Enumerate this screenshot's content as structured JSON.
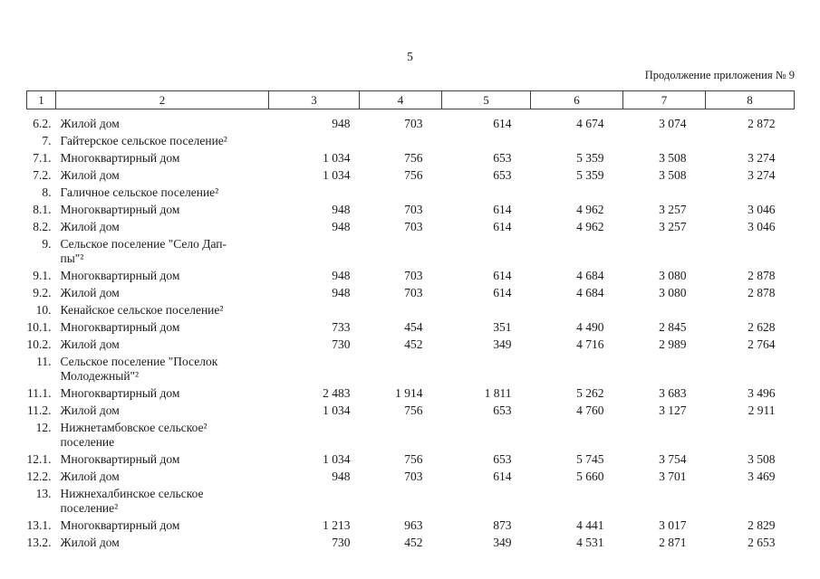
{
  "page": {
    "number": "5",
    "continuation_note": "Продолжение приложения № 9"
  },
  "table": {
    "column_headers": [
      "1",
      "2",
      "3",
      "4",
      "5",
      "6",
      "7",
      "8"
    ],
    "rows": [
      {
        "num": "6.2.",
        "label": "Жилой дом",
        "values": [
          "948",
          "703",
          "614",
          "4 674",
          "3 074",
          "2 872"
        ]
      },
      {
        "num": "7.",
        "label": "Гайтерское сельское поселение²",
        "values": [
          "",
          "",
          "",
          "",
          "",
          ""
        ]
      },
      {
        "num": "7.1.",
        "label": "Многоквартирный дом",
        "values": [
          "1 034",
          "756",
          "653",
          "5 359",
          "3 508",
          "3 274"
        ]
      },
      {
        "num": "7.2.",
        "label": "Жилой дом",
        "values": [
          "1 034",
          "756",
          "653",
          "5 359",
          "3 508",
          "3 274"
        ]
      },
      {
        "num": "8.",
        "label": "Галичное сельское поселение²",
        "values": [
          "",
          "",
          "",
          "",
          "",
          ""
        ]
      },
      {
        "num": "8.1.",
        "label": "Многоквартирный дом",
        "values": [
          "948",
          "703",
          "614",
          "4 962",
          "3 257",
          "3 046"
        ]
      },
      {
        "num": "8.2.",
        "label": "Жилой дом",
        "values": [
          "948",
          "703",
          "614",
          "4 962",
          "3 257",
          "3 046"
        ]
      },
      {
        "num": "9.",
        "label": "Сельское поселение \"Село Дап-\nпы\"²",
        "values": [
          "",
          "",
          "",
          "",
          "",
          ""
        ]
      },
      {
        "num": "9.1.",
        "label": "Многоквартирный дом",
        "values": [
          "948",
          "703",
          "614",
          "4 684",
          "3 080",
          "2 878"
        ]
      },
      {
        "num": "9.2.",
        "label": "Жилой дом",
        "values": [
          "948",
          "703",
          "614",
          "4 684",
          "3 080",
          "2 878"
        ]
      },
      {
        "num": "10.",
        "label": "Кенайское сельское поселение²",
        "values": [
          "",
          "",
          "",
          "",
          "",
          ""
        ]
      },
      {
        "num": "10.1.",
        "label": "Многоквартирный дом",
        "values": [
          "733",
          "454",
          "351",
          "4 490",
          "2 845",
          "2 628"
        ]
      },
      {
        "num": "10.2.",
        "label": "Жилой дом",
        "values": [
          "730",
          "452",
          "349",
          "4 716",
          "2 989",
          "2 764"
        ]
      },
      {
        "num": "11.",
        "label": "Сельское поселение \"Поселок\nМолодежный\"²",
        "values": [
          "",
          "",
          "",
          "",
          "",
          ""
        ]
      },
      {
        "num": "11.1.",
        "label": "Многоквартирный дом",
        "values": [
          "2 483",
          "1 914",
          "1 811",
          "5 262",
          "3 683",
          "3 496"
        ]
      },
      {
        "num": "11.2.",
        "label": "Жилой дом",
        "values": [
          "1 034",
          "756",
          "653",
          "4 760",
          "3 127",
          "2 911"
        ]
      },
      {
        "num": "12.",
        "label": "Нижнетамбовское сельское²\nпоселение",
        "values": [
          "",
          "",
          "",
          "",
          "",
          ""
        ]
      },
      {
        "num": "12.1.",
        "label": "Многоквартирный дом",
        "values": [
          "1 034",
          "756",
          "653",
          "5 745",
          "3 754",
          "3 508"
        ]
      },
      {
        "num": "12.2.",
        "label": "Жилой дом",
        "values": [
          "948",
          "703",
          "614",
          "5 660",
          "3 701",
          "3 469"
        ]
      },
      {
        "num": "13.",
        "label": "Нижнехалбинское сельское\nпоселение²",
        "values": [
          "",
          "",
          "",
          "",
          "",
          ""
        ]
      },
      {
        "num": "13.1.",
        "label": "Многоквартирный дом",
        "values": [
          "1 213",
          "963",
          "873",
          "4 441",
          "3 017",
          "2 829"
        ]
      },
      {
        "num": "13.2.",
        "label": "Жилой дом",
        "values": [
          "730",
          "452",
          "349",
          "4 531",
          "2 871",
          "2 653"
        ]
      }
    ]
  }
}
